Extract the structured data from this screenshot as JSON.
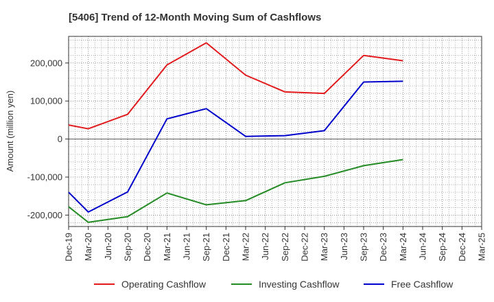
{
  "chart_data": {
    "type": "line",
    "title": "[5406]  Trend of 12-Month Moving Sum of Cashflows",
    "ylabel": "Amount (million yen)",
    "xlabel": "",
    "categories": [
      "Dec-19",
      "Mar-20",
      "Jun-20",
      "Sep-20",
      "Dec-20",
      "Mar-21",
      "Jun-21",
      "Sep-21",
      "Dec-21",
      "Mar-22",
      "Jun-22",
      "Sep-22",
      "Dec-22",
      "Mar-23",
      "Jun-23",
      "Sep-23",
      "Dec-23",
      "Mar-24",
      "Jun-24",
      "Sep-24",
      "Dec-24",
      "Mar-25"
    ],
    "ylim": [
      -230000,
      270000
    ],
    "yticks": [
      -200000,
      -100000,
      0,
      100000,
      200000
    ],
    "ytick_labels": [
      "-200,000",
      "-100,000",
      "0",
      "100,000",
      "200,000"
    ],
    "grid": true,
    "legend_position": "bottom",
    "series": [
      {
        "name": "Operating Cashflow",
        "color": "#e31a1c",
        "points": [
          {
            "x": "Dec-19",
            "y": 37000
          },
          {
            "x": "Mar-20",
            "y": 27000
          },
          {
            "x": "Sep-20",
            "y": 65000
          },
          {
            "x": "Mar-21",
            "y": 195000
          },
          {
            "x": "Sep-21",
            "y": 253000
          },
          {
            "x": "Mar-22",
            "y": 168000
          },
          {
            "x": "Sep-22",
            "y": 124000
          },
          {
            "x": "Mar-23",
            "y": 120000
          },
          {
            "x": "Sep-23",
            "y": 220000
          },
          {
            "x": "Mar-24",
            "y": 206000
          }
        ]
      },
      {
        "name": "Investing Cashflow",
        "color": "#228b22",
        "points": [
          {
            "x": "Dec-19",
            "y": -178000
          },
          {
            "x": "Mar-20",
            "y": -219000
          },
          {
            "x": "Sep-20",
            "y": -204000
          },
          {
            "x": "Mar-21",
            "y": -142000
          },
          {
            "x": "Sep-21",
            "y": -173000
          },
          {
            "x": "Mar-22",
            "y": -162000
          },
          {
            "x": "Sep-22",
            "y": -115000
          },
          {
            "x": "Mar-23",
            "y": -98000
          },
          {
            "x": "Sep-23",
            "y": -70000
          },
          {
            "x": "Mar-24",
            "y": -54000
          }
        ]
      },
      {
        "name": "Free Cashflow",
        "color": "#0000cd",
        "points": [
          {
            "x": "Dec-19",
            "y": -140000
          },
          {
            "x": "Mar-20",
            "y": -192000
          },
          {
            "x": "Sep-20",
            "y": -139000
          },
          {
            "x": "Mar-21",
            "y": 53000
          },
          {
            "x": "Sep-21",
            "y": 80000
          },
          {
            "x": "Mar-22",
            "y": 7000
          },
          {
            "x": "Sep-22",
            "y": 9000
          },
          {
            "x": "Mar-23",
            "y": 22000
          },
          {
            "x": "Sep-23",
            "y": 150000
          },
          {
            "x": "Mar-24",
            "y": 152000
          }
        ]
      }
    ]
  }
}
